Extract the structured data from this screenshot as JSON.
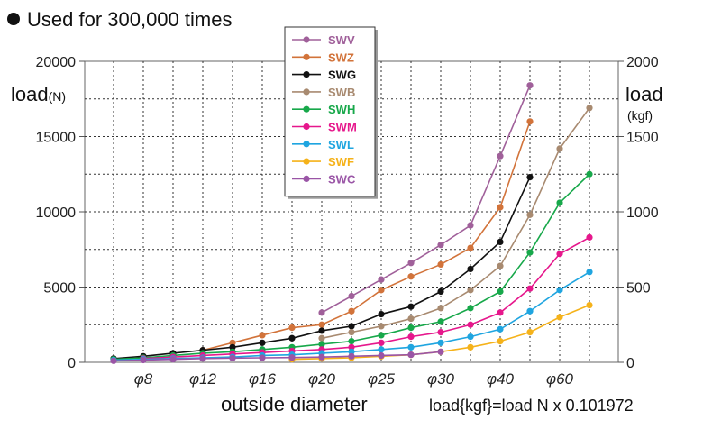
{
  "header": {
    "text": "Used for 300,000 times"
  },
  "chart_data": {
    "type": "line",
    "title": "",
    "xlabel": "outside diameter",
    "ylabel_left": "load",
    "ylabel_left_unit": "(N)",
    "ylabel_right": "load",
    "ylabel_right_unit": "(kgf)",
    "formula": "load{kgf}=load N x 0.101972",
    "ylim_left": [
      0,
      20000
    ],
    "ylim_right": [
      0,
      2000
    ],
    "yticks_left": [
      "0",
      "5000",
      "10000",
      "15000",
      "20000"
    ],
    "yticks_right": [
      "0",
      "500",
      "1000",
      "1500",
      "2000"
    ],
    "xtick_labels": [
      "φ8",
      "φ12",
      "φ16",
      "φ20",
      "φ25",
      "φ30",
      "φ40",
      "φ60"
    ],
    "grid": true,
    "legend_position": "top-center",
    "series": [
      {
        "name": "SWV",
        "color": "#a0609a",
        "values": [
          null,
          null,
          null,
          null,
          null,
          null,
          null,
          3300,
          4400,
          5500,
          6600,
          7800,
          9100,
          13700,
          18400,
          null
        ]
      },
      {
        "name": "SWZ",
        "color": "#d2733a",
        "values": [
          null,
          null,
          null,
          800,
          1300,
          1800,
          2300,
          2500,
          3400,
          4800,
          5700,
          6500,
          7600,
          10300,
          16000,
          null
        ]
      },
      {
        "name": "SWG",
        "color": "#111111",
        "values": [
          250,
          400,
          600,
          800,
          1000,
          1300,
          1600,
          2100,
          2400,
          3200,
          3700,
          4700,
          6200,
          8000,
          12300,
          null
        ]
      },
      {
        "name": "SWB",
        "color": "#a88a70",
        "values": [
          null,
          null,
          null,
          null,
          null,
          null,
          null,
          1600,
          2000,
          2400,
          2900,
          3600,
          4800,
          6400,
          9800,
          14200,
          16900
        ]
      },
      {
        "name": "SWH",
        "color": "#17a84a",
        "values": [
          200,
          300,
          450,
          600,
          700,
          850,
          1000,
          1200,
          1400,
          1800,
          2300,
          2700,
          3600,
          4700,
          7300,
          10600,
          12500
        ]
      },
      {
        "name": "SWM",
        "color": "#e6178c",
        "values": [
          null,
          250,
          350,
          450,
          550,
          650,
          750,
          850,
          1000,
          1300,
          1700,
          2000,
          2500,
          3300,
          4900,
          7200,
          8300
        ]
      },
      {
        "name": "SWL",
        "color": "#1fa5e0",
        "values": [
          150,
          200,
          250,
          300,
          350,
          450,
          500,
          600,
          700,
          850,
          1000,
          1300,
          1700,
          2200,
          3400,
          4800,
          6000
        ]
      },
      {
        "name": "SWF",
        "color": "#f5b21a",
        "values": [
          null,
          null,
          null,
          null,
          null,
          null,
          200,
          250,
          300,
          400,
          500,
          700,
          1000,
          1400,
          2000,
          3000,
          3800
        ]
      },
      {
        "name": "SWC",
        "color": "#9a55a6",
        "values": [
          100,
          150,
          200,
          250,
          280,
          300,
          320,
          350,
          400,
          450,
          500,
          700,
          null,
          null,
          null,
          null,
          null
        ]
      }
    ]
  }
}
